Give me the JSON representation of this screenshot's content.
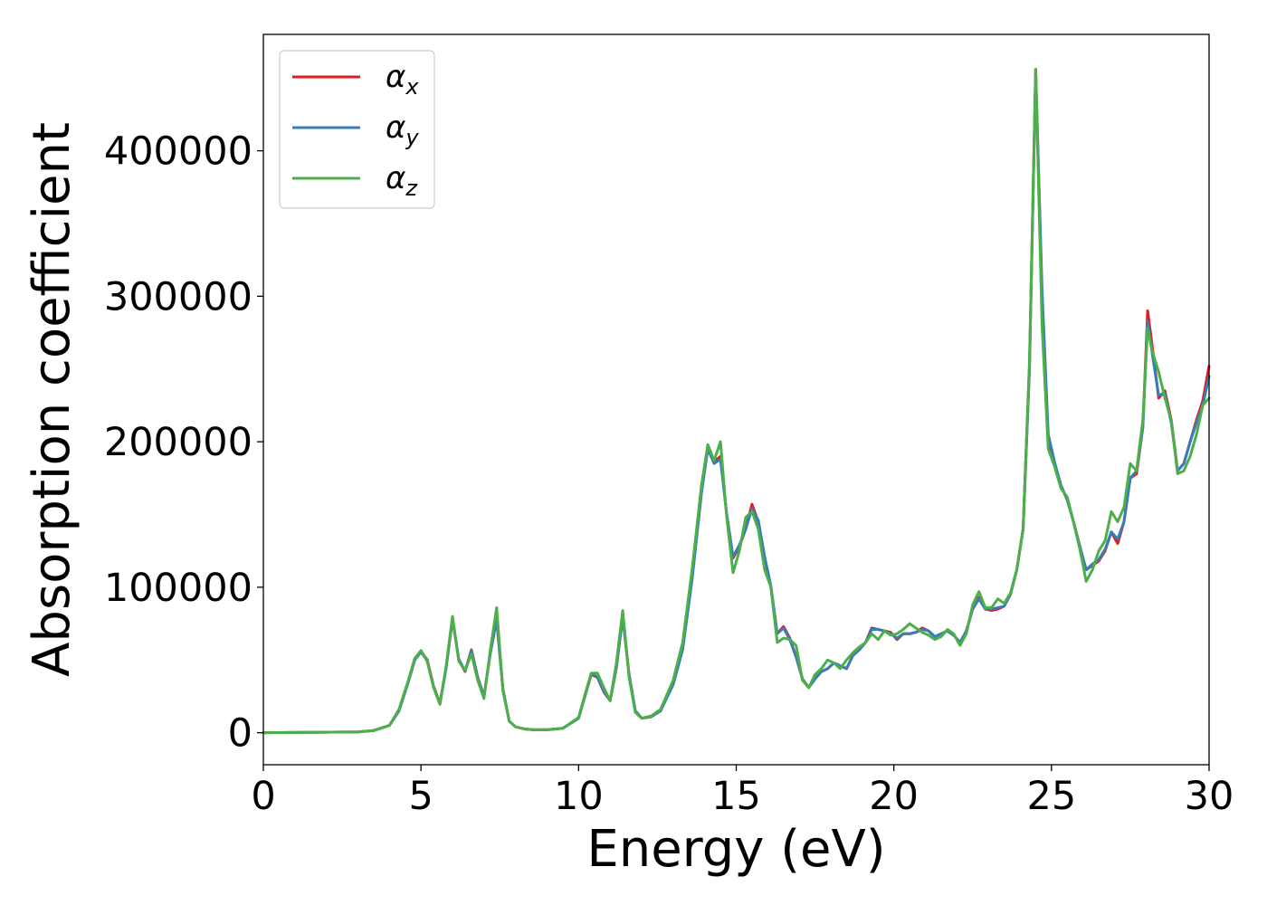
{
  "chart_data": {
    "type": "line",
    "title": "",
    "xlabel": "Energy (eV)",
    "ylabel": "Absorption coefficient",
    "xlim": [
      0,
      30
    ],
    "ylim": [
      -22000,
      480000
    ],
    "xticks": [
      0,
      5,
      10,
      15,
      20,
      25,
      30
    ],
    "yticks": [
      0,
      100000,
      200000,
      300000,
      400000
    ],
    "grid": false,
    "legend_position": "top-left",
    "series": [
      {
        "name": "α_x",
        "symbol": "α",
        "subscript": "x",
        "color": "#e41a1c",
        "x": [
          0,
          3,
          3.5,
          4,
          4.3,
          4.6,
          4.8,
          5.0,
          5.2,
          5.4,
          5.6,
          5.8,
          6.0,
          6.2,
          6.4,
          6.6,
          6.8,
          7.0,
          7.2,
          7.4,
          7.6,
          7.8,
          8.0,
          8.3,
          8.6,
          9,
          9.5,
          10,
          10.2,
          10.4,
          10.6,
          10.8,
          11,
          11.2,
          11.4,
          11.6,
          11.8,
          12,
          12.3,
          12.6,
          13,
          13.3,
          13.6,
          13.9,
          14.1,
          14.3,
          14.5,
          14.7,
          14.9,
          15.1,
          15.3,
          15.5,
          15.7,
          15.9,
          16.1,
          16.3,
          16.5,
          16.7,
          16.9,
          17.1,
          17.3,
          17.5,
          17.7,
          17.9,
          18.1,
          18.3,
          18.5,
          18.7,
          18.9,
          19.1,
          19.3,
          19.5,
          19.7,
          19.9,
          20.1,
          20.3,
          20.5,
          20.7,
          20.9,
          21.1,
          21.3,
          21.5,
          21.7,
          21.9,
          22.1,
          22.3,
          22.5,
          22.7,
          22.9,
          23.1,
          23.3,
          23.5,
          23.7,
          23.9,
          24.1,
          24.3,
          24.5,
          24.7,
          24.9,
          25.1,
          25.3,
          25.5,
          25.7,
          25.9,
          26.1,
          26.3,
          26.5,
          26.7,
          26.9,
          27.1,
          27.3,
          27.5,
          27.7,
          27.9,
          28.05,
          28.2,
          28.4,
          28.6,
          28.8,
          29.0,
          29.2,
          29.4,
          29.6,
          29.8,
          30
        ],
        "y": [
          0,
          500,
          1500,
          5000,
          15000,
          35000,
          50000,
          56000,
          50000,
          32000,
          20000,
          45000,
          78000,
          50000,
          42000,
          57000,
          38000,
          25000,
          55000,
          78000,
          30000,
          8000,
          4000,
          2500,
          2000,
          2000,
          3000,
          10000,
          25000,
          40000,
          38000,
          28000,
          22000,
          45000,
          80000,
          40000,
          15000,
          10000,
          11000,
          15000,
          35000,
          60000,
          110000,
          170000,
          197000,
          186000,
          190000,
          150000,
          120000,
          128000,
          140000,
          157000,
          145000,
          120000,
          100000,
          68000,
          73000,
          65000,
          52000,
          37000,
          31000,
          37000,
          42000,
          44000,
          48000,
          46000,
          44000,
          53000,
          57000,
          62000,
          72000,
          71000,
          70000,
          69000,
          64000,
          68000,
          68000,
          69000,
          72000,
          70000,
          66000,
          68000,
          70000,
          67000,
          62000,
          70000,
          85000,
          93000,
          85000,
          84000,
          85000,
          87000,
          95000,
          112000,
          140000,
          250000,
          456000,
          300000,
          200000,
          185000,
          170000,
          160000,
          145000,
          128000,
          112000,
          115000,
          118000,
          125000,
          138000,
          130000,
          145000,
          175000,
          178000,
          210000,
          290000,
          265000,
          230000,
          235000,
          215000,
          180000,
          185000,
          200000,
          215000,
          228000,
          252000
        ]
      },
      {
        "name": "α_y",
        "symbol": "α",
        "subscript": "y",
        "color": "#377eb8",
        "x": [
          0,
          3,
          3.5,
          4,
          4.3,
          4.6,
          4.8,
          5.0,
          5.2,
          5.4,
          5.6,
          5.8,
          6.0,
          6.2,
          6.4,
          6.6,
          6.8,
          7.0,
          7.2,
          7.4,
          7.6,
          7.8,
          8.0,
          8.3,
          8.6,
          9,
          9.5,
          10,
          10.2,
          10.4,
          10.6,
          10.8,
          11,
          11.2,
          11.4,
          11.6,
          11.8,
          12,
          12.3,
          12.6,
          13,
          13.3,
          13.6,
          13.9,
          14.1,
          14.3,
          14.5,
          14.7,
          14.9,
          15.1,
          15.3,
          15.5,
          15.7,
          15.9,
          16.1,
          16.3,
          16.5,
          16.7,
          16.9,
          17.1,
          17.3,
          17.5,
          17.7,
          17.9,
          18.1,
          18.3,
          18.5,
          18.7,
          18.9,
          19.1,
          19.3,
          19.5,
          19.7,
          19.9,
          20.1,
          20.3,
          20.5,
          20.7,
          20.9,
          21.1,
          21.3,
          21.5,
          21.7,
          21.9,
          22.1,
          22.3,
          22.5,
          22.7,
          22.9,
          23.1,
          23.3,
          23.5,
          23.7,
          23.9,
          24.1,
          24.3,
          24.5,
          24.7,
          24.9,
          25.1,
          25.3,
          25.5,
          25.7,
          25.9,
          26.1,
          26.3,
          26.5,
          26.7,
          26.9,
          27.1,
          27.3,
          27.5,
          27.7,
          27.9,
          28.05,
          28.2,
          28.4,
          28.6,
          28.8,
          29.0,
          29.2,
          29.4,
          29.6,
          29.8,
          30
        ],
        "y": [
          0,
          500,
          1500,
          5000,
          15000,
          35000,
          50000,
          55500,
          49500,
          31500,
          20000,
          44500,
          78500,
          50500,
          42500,
          56500,
          37500,
          25000,
          54500,
          77500,
          30000,
          8000,
          4000,
          2500,
          2000,
          2000,
          3000,
          10000,
          25000,
          40500,
          38500,
          28500,
          22000,
          45000,
          79500,
          40000,
          15000,
          10000,
          11000,
          15000,
          33000,
          57000,
          105000,
          165000,
          195000,
          185000,
          188000,
          150000,
          121000,
          129000,
          140000,
          154000,
          146000,
          121000,
          101000,
          68000,
          72000,
          64000,
          52000,
          37000,
          31000,
          37000,
          42000,
          44000,
          48000,
          46000,
          44000,
          53000,
          57000,
          62000,
          71000,
          71000,
          70000,
          68000,
          65000,
          68000,
          68000,
          69000,
          71000,
          70000,
          66000,
          68000,
          70000,
          67000,
          62000,
          70000,
          85000,
          92000,
          85000,
          85000,
          86000,
          87000,
          95000,
          112000,
          140000,
          250000,
          454000,
          305000,
          205000,
          186000,
          170000,
          160000,
          145000,
          128000,
          112000,
          116000,
          119000,
          126000,
          138000,
          133000,
          145000,
          175000,
          180000,
          210000,
          283000,
          260000,
          232000,
          233000,
          213000,
          180000,
          185000,
          200000,
          213000,
          225000,
          245000
        ]
      },
      {
        "name": "α_z",
        "symbol": "α",
        "subscript": "z",
        "color": "#4daf4a",
        "x": [
          0,
          3,
          3.5,
          4,
          4.3,
          4.6,
          4.8,
          5.0,
          5.2,
          5.4,
          5.6,
          5.8,
          6.0,
          6.2,
          6.4,
          6.6,
          6.8,
          7.0,
          7.2,
          7.4,
          7.6,
          7.8,
          8.0,
          8.3,
          8.6,
          9,
          9.5,
          10,
          10.2,
          10.4,
          10.6,
          10.8,
          11,
          11.2,
          11.4,
          11.6,
          11.8,
          12,
          12.3,
          12.6,
          13,
          13.3,
          13.6,
          13.9,
          14.1,
          14.3,
          14.5,
          14.7,
          14.9,
          15.1,
          15.3,
          15.5,
          15.7,
          15.9,
          16.1,
          16.3,
          16.5,
          16.7,
          16.9,
          17.1,
          17.3,
          17.5,
          17.7,
          17.9,
          18.1,
          18.3,
          18.5,
          18.7,
          18.9,
          19.1,
          19.3,
          19.5,
          19.7,
          19.9,
          20.1,
          20.3,
          20.5,
          20.7,
          20.9,
          21.1,
          21.3,
          21.5,
          21.7,
          21.9,
          22.1,
          22.3,
          22.5,
          22.7,
          22.9,
          23.1,
          23.3,
          23.5,
          23.7,
          23.9,
          24.1,
          24.3,
          24.5,
          24.7,
          24.9,
          25.1,
          25.3,
          25.5,
          25.7,
          25.9,
          26.1,
          26.3,
          26.5,
          26.7,
          26.9,
          27.1,
          27.3,
          27.5,
          27.7,
          27.9,
          28.05,
          28.2,
          28.4,
          28.6,
          28.8,
          29.0,
          29.2,
          29.4,
          29.6,
          29.8,
          30
        ],
        "y": [
          0,
          500,
          1500,
          5000,
          16000,
          36000,
          51000,
          56500,
          49000,
          31000,
          19500,
          46000,
          80000,
          49000,
          43000,
          54000,
          36000,
          23500,
          57000,
          86000,
          29000,
          8000,
          4000,
          2500,
          2000,
          2000,
          3000,
          10500,
          26000,
          41000,
          41000,
          31000,
          22000,
          48000,
          84000,
          38000,
          14000,
          10000,
          11500,
          16000,
          36000,
          62000,
          112000,
          170000,
          198000,
          187000,
          200000,
          148000,
          110000,
          125000,
          148000,
          152000,
          140000,
          112000,
          100000,
          62000,
          65000,
          64000,
          60000,
          36000,
          31000,
          40000,
          44000,
          50000,
          48000,
          44000,
          50000,
          55000,
          59000,
          62000,
          68000,
          64000,
          70000,
          67000,
          68000,
          71000,
          75000,
          72000,
          69000,
          67000,
          64000,
          66000,
          71000,
          68000,
          60000,
          68000,
          88000,
          97000,
          86000,
          86000,
          92000,
          89000,
          96000,
          112000,
          140000,
          255000,
          456000,
          280000,
          195000,
          183000,
          168000,
          162000,
          145000,
          126000,
          104000,
          112000,
          125000,
          132000,
          152000,
          145000,
          155000,
          185000,
          180000,
          215000,
          278000,
          262000,
          248000,
          230000,
          215000,
          178000,
          180000,
          190000,
          205000,
          225000,
          230000
        ]
      }
    ]
  }
}
